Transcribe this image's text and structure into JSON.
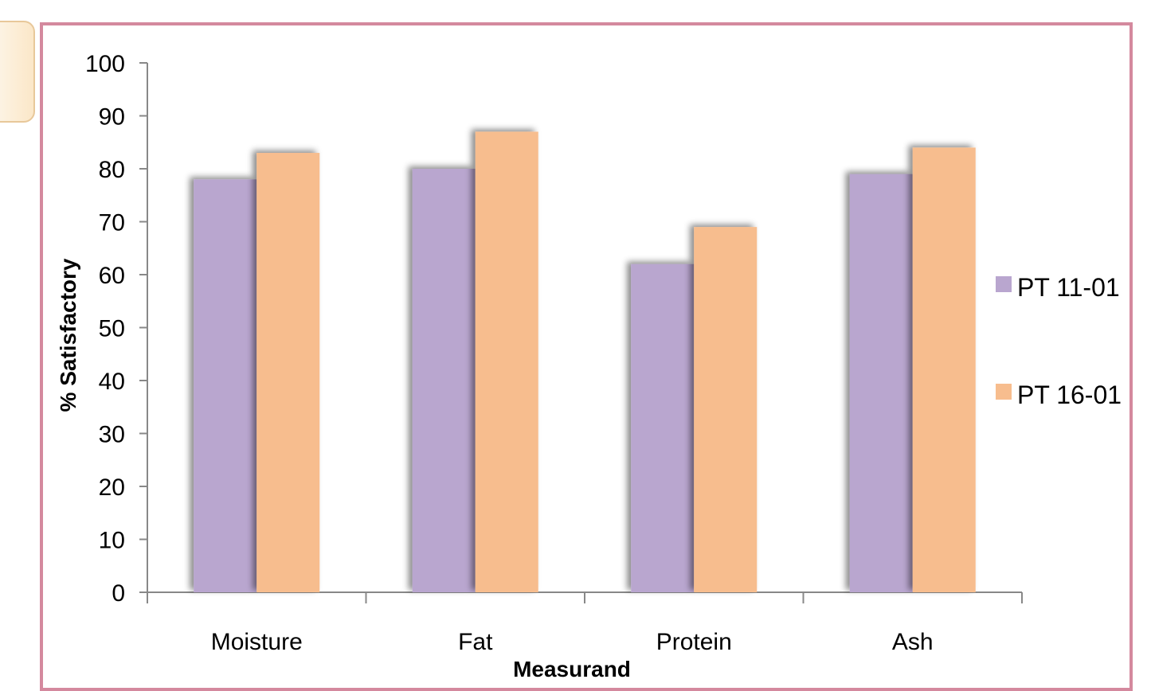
{
  "chart_data": {
    "type": "bar",
    "categories": [
      "Moisture",
      "Fat",
      "Protein",
      "Ash"
    ],
    "series": [
      {
        "name": "PT 11-01",
        "color": "#b9a6cf",
        "values": [
          78,
          80,
          62,
          79
        ]
      },
      {
        "name": "PT 16-01",
        "color": "#f7bd8e",
        "values": [
          83,
          87,
          69,
          84
        ]
      }
    ],
    "title": "",
    "xlabel": "Measurand",
    "ylabel": "% Satisfactory",
    "ylim": [
      0,
      100
    ],
    "yticks": [
      "0",
      "10",
      "20",
      "30",
      "40",
      "50",
      "60",
      "70",
      "80",
      "90",
      "100"
    ],
    "grid": false,
    "legend_position": "right"
  }
}
